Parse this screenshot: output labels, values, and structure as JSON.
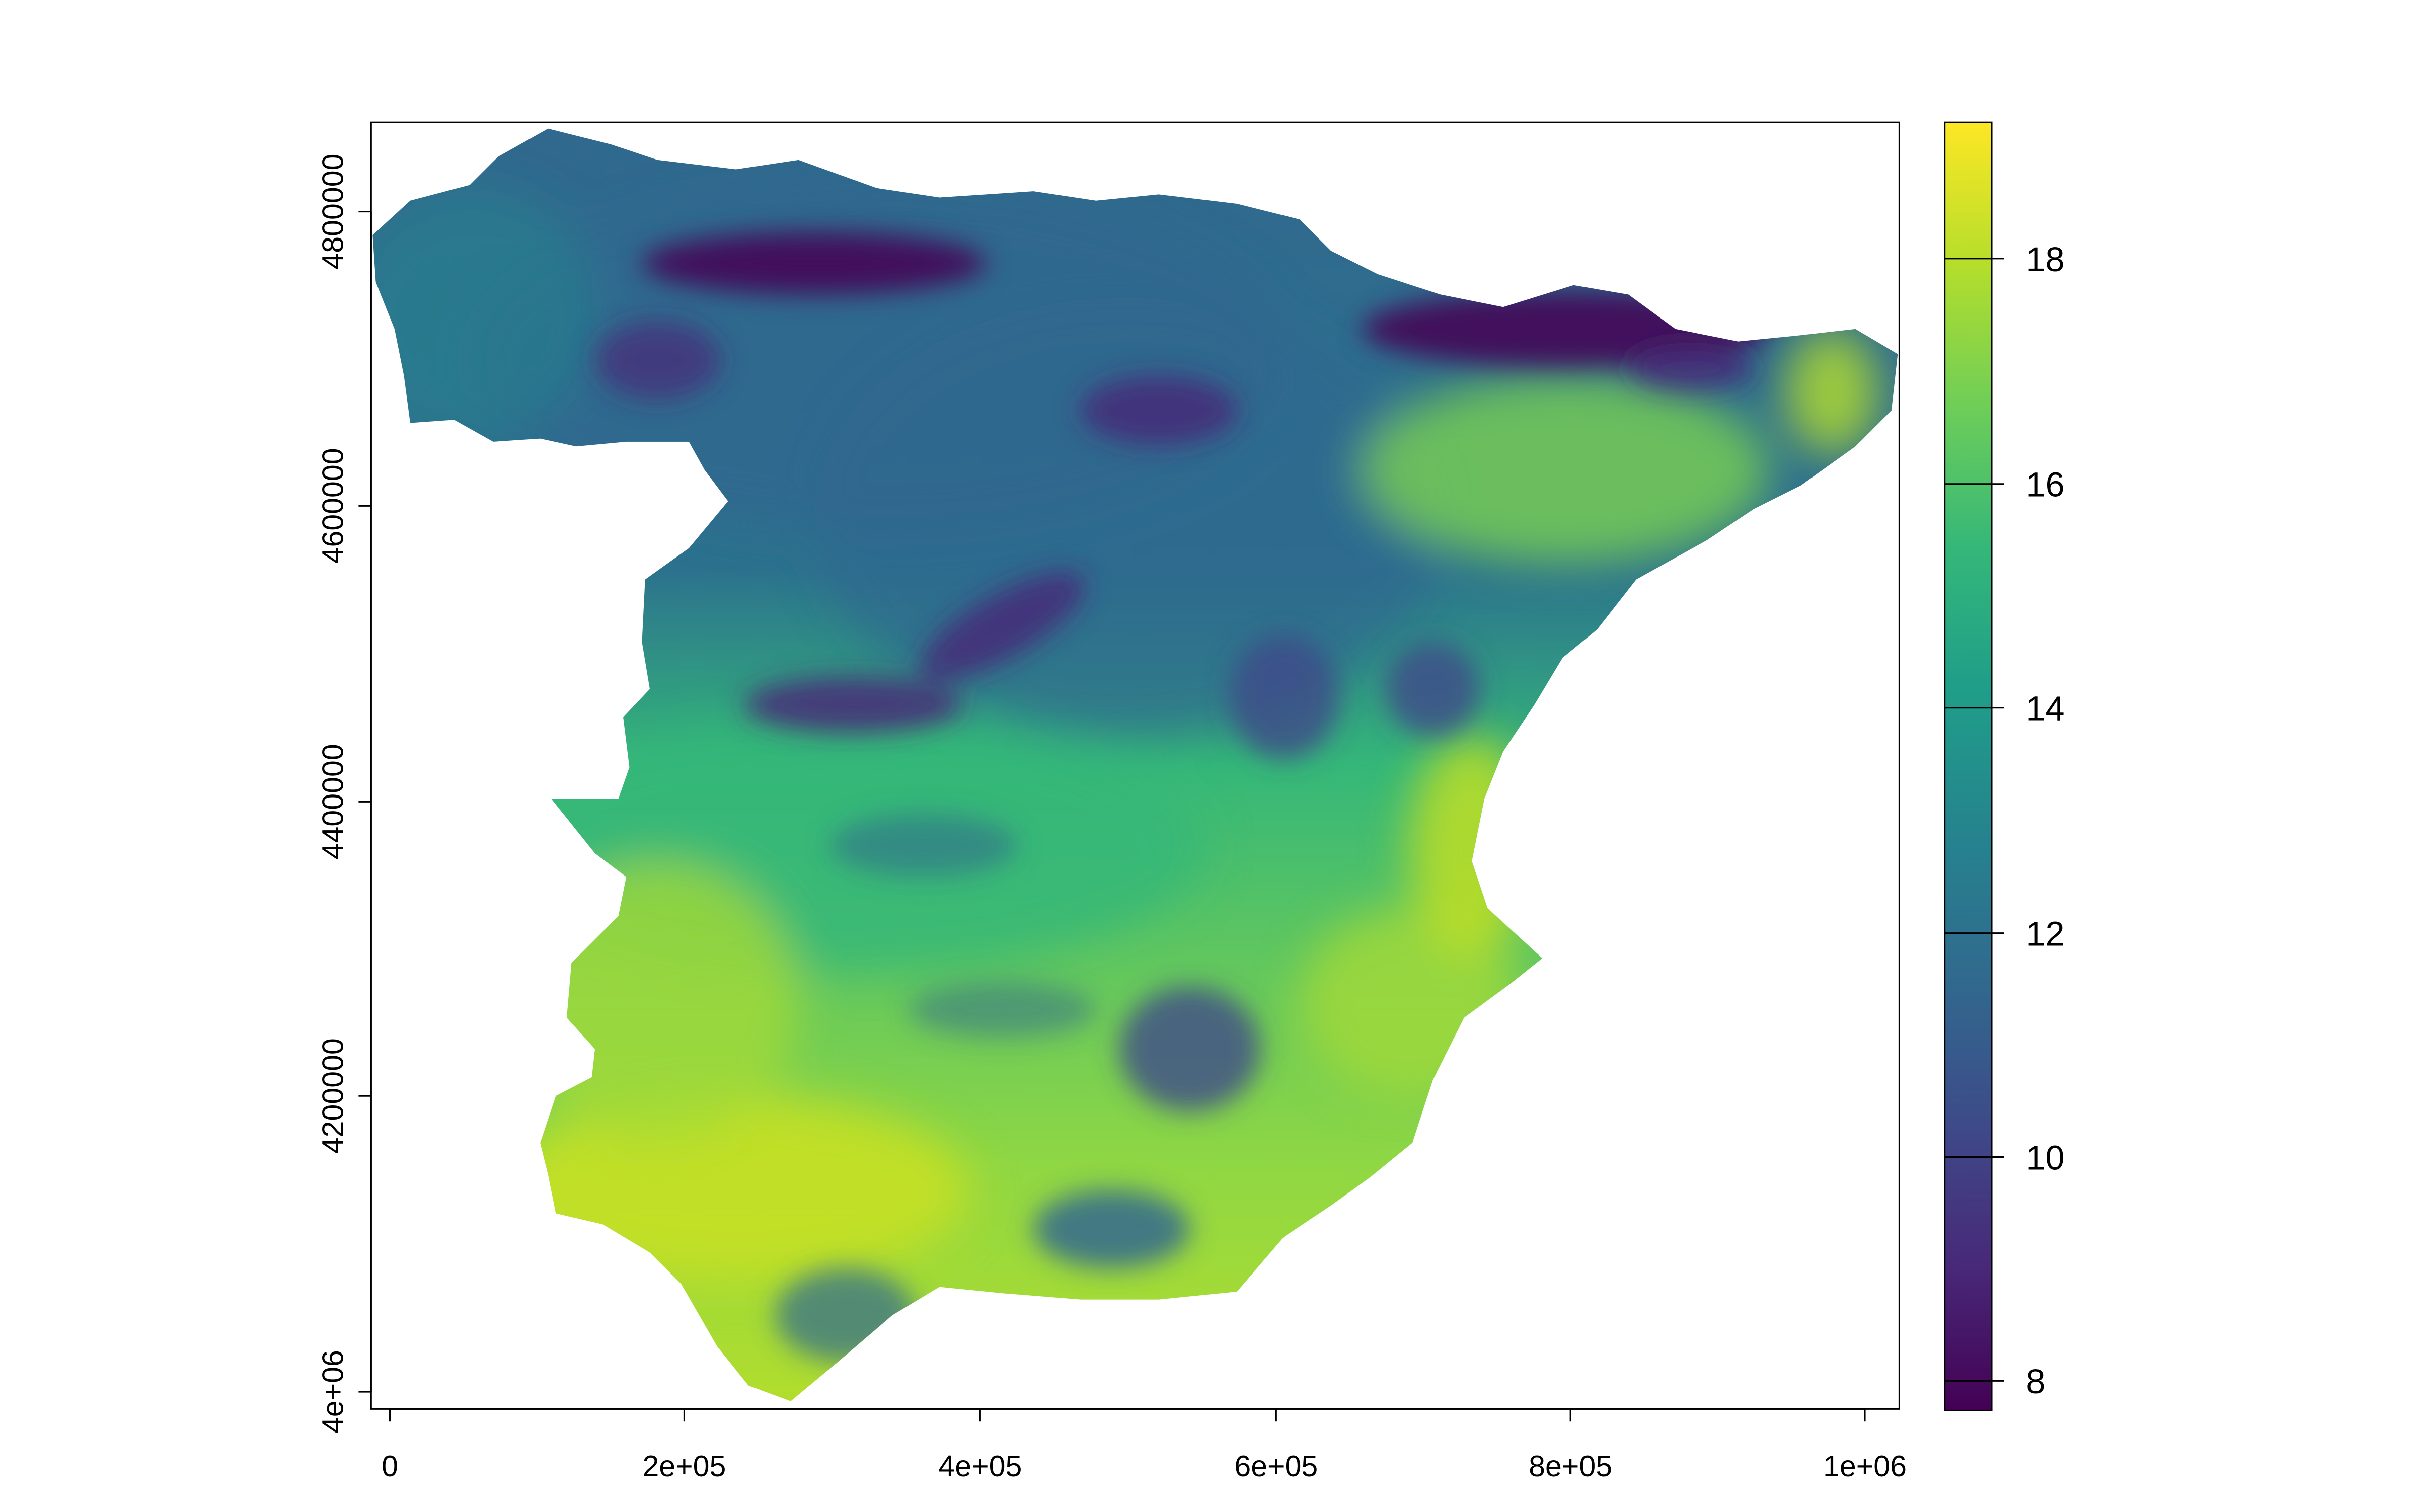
{
  "map": {
    "x_ticks": [
      "0",
      "2e+05",
      "4e+05",
      "6e+05",
      "8e+05",
      "1e+06"
    ],
    "y_ticks": [
      "4e+06",
      "4200000",
      "4400000",
      "4600000",
      "4800000"
    ]
  },
  "legend": {
    "ticks": [
      "8",
      "10",
      "12",
      "14",
      "16",
      "18"
    ],
    "colors": [
      "#440154",
      "#482878",
      "#3e4a89",
      "#31688e",
      "#26828e",
      "#1f9e89",
      "#35b779",
      "#6ece58",
      "#b5de2b",
      "#fde725"
    ]
  }
}
